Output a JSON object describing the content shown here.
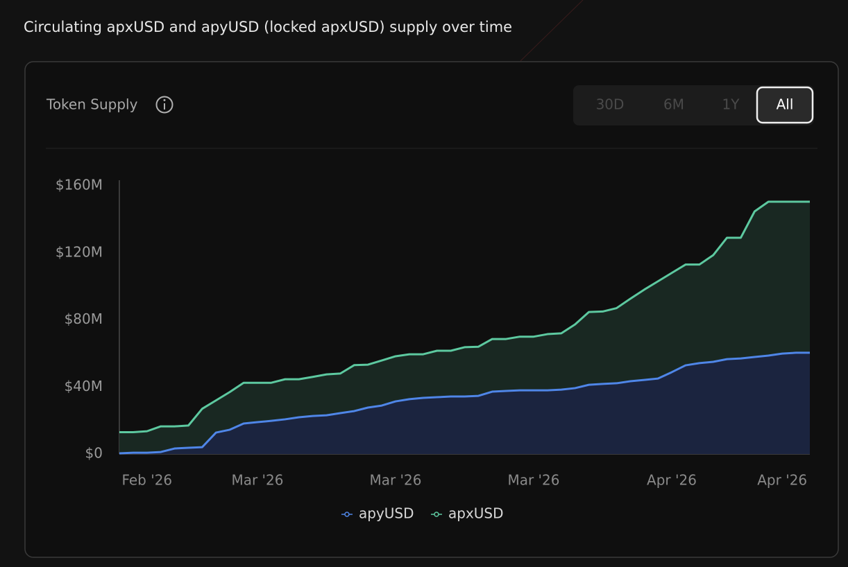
{
  "page_title": "Circulating apxUSD and apyUSD (locked apxUSD) supply over time",
  "card_title": "Token Supply",
  "range_buttons": [
    "30D",
    "6M",
    "1Y",
    "All"
  ],
  "selected_range": 3,
  "chart_data": {
    "type": "area",
    "categories": [
      null,
      null,
      "Feb '26",
      null,
      null,
      null,
      null,
      null,
      null,
      null,
      "Mar '26",
      null,
      null,
      null,
      null,
      null,
      null,
      null,
      null,
      null,
      "Mar '26",
      null,
      null,
      null,
      null,
      null,
      null,
      null,
      null,
      null,
      "Mar '26",
      null,
      null,
      null,
      null,
      null,
      null,
      null,
      null,
      null,
      "Apr '26",
      null,
      null,
      null,
      null,
      null,
      null,
      null,
      "Apr '26",
      null,
      null
    ],
    "series": [
      {
        "name": "apyUSD",
        "color": "#4f86e8",
        "fill": "#1a2340",
        "values": [
          0.4,
          0.8,
          0.8,
          1.2,
          3.3,
          3.7,
          4.1,
          12.8,
          14.5,
          18.2,
          19,
          19.8,
          20.7,
          21.9,
          22.7,
          23.1,
          24.4,
          25.6,
          27.7,
          28.9,
          31.4,
          32.7,
          33.5,
          33.9,
          34.3,
          34.3,
          34.7,
          37.2,
          37.6,
          38,
          38,
          38,
          38.4,
          39.3,
          41.3,
          41.8,
          42.2,
          43.4,
          44.2,
          45,
          48.8,
          52.9,
          54.2,
          55,
          56.6,
          57,
          57.9,
          58.7,
          59.9,
          60.4,
          60.4
        ]
      },
      {
        "name": "apxUSD",
        "color": "#5dc9a0",
        "fill": "#19292300",
        "values": [
          13,
          13,
          13.6,
          16.5,
          16.5,
          17,
          27,
          32,
          37,
          42.5,
          42.5,
          42.5,
          44.6,
          44.6,
          46,
          47.5,
          48,
          53,
          53.3,
          55.8,
          58.3,
          59.5,
          59.5,
          61.6,
          61.6,
          63.7,
          64,
          68.6,
          68.6,
          70,
          70,
          71.5,
          72,
          77.3,
          84.7,
          85,
          87,
          92.6,
          98,
          103,
          108,
          113,
          113,
          118.6,
          129,
          129,
          144.7,
          150.5,
          150.5,
          150.5,
          150.5
        ]
      }
    ],
    "ylim": [
      0,
      160
    ],
    "yticks": [
      {
        "value": 0,
        "label": "$0"
      },
      {
        "value": 40,
        "label": "$40M"
      },
      {
        "value": 80,
        "label": "$80M"
      },
      {
        "value": 120,
        "label": "$120M"
      },
      {
        "value": 160,
        "label": "$160M"
      }
    ],
    "grid": false
  }
}
